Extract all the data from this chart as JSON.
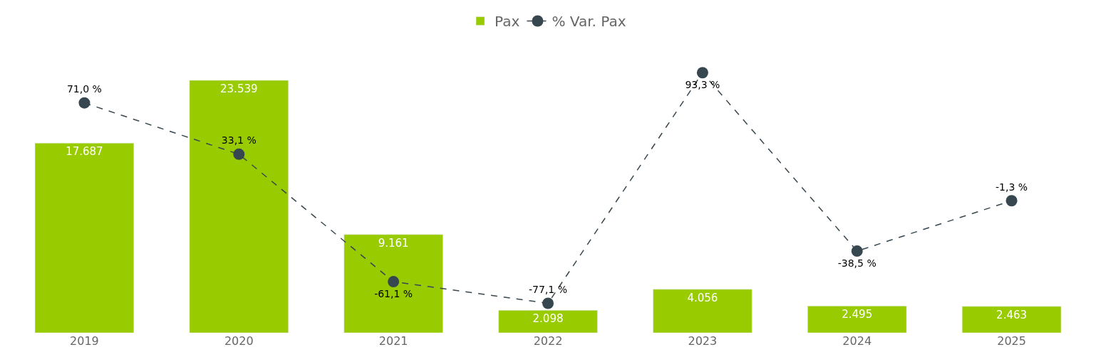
{
  "chart_data": {
    "type": "bar",
    "categories": [
      "2019",
      "2020",
      "2021",
      "2022",
      "2023",
      "2024",
      "2025"
    ],
    "series": [
      {
        "name": "Pax",
        "color": "#99cc00",
        "values": [
          17687,
          23539,
          9161,
          2098,
          4056,
          2495,
          2463
        ],
        "value_labels": [
          "17.687",
          "23.539",
          "9.161",
          "2.098",
          "4.056",
          "2.495",
          "2.463"
        ]
      },
      {
        "name": "% Var. Pax",
        "type": "line",
        "axis": "y2",
        "color": "#37474f",
        "line_style": "dashed",
        "marker": "circle",
        "values": [
          71.0,
          33.1,
          -61.1,
          -77.1,
          93.3,
          -38.5,
          -1.3
        ],
        "value_labels": [
          "71,0 %",
          "33,1 %",
          "-61,1 %",
          "-77,1 %",
          "93,3 %",
          "-38,5 %",
          "-1,3 %"
        ]
      }
    ],
    "legend": "top",
    "tick_labels": "x"
  }
}
